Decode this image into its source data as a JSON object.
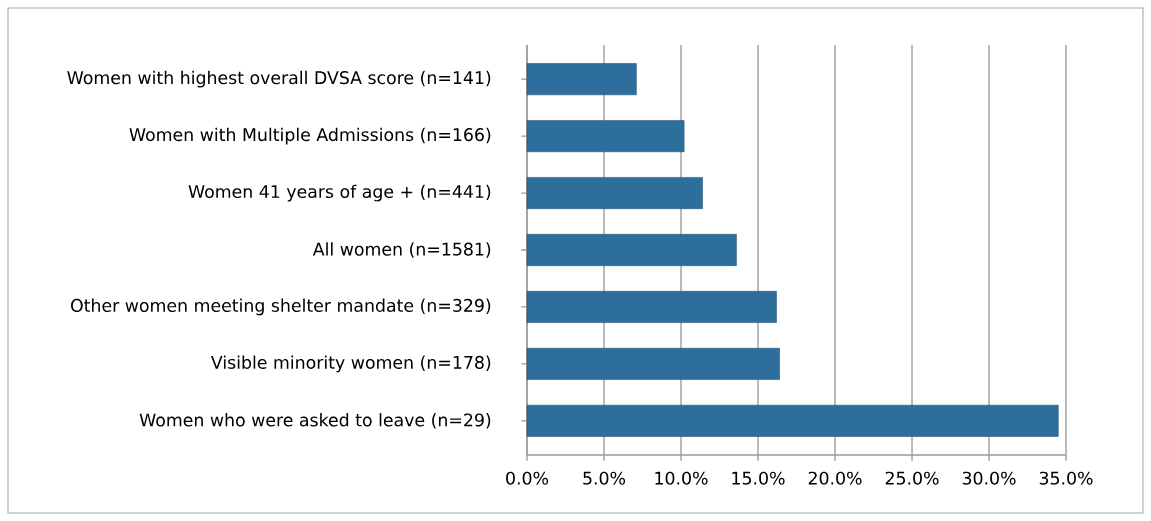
{
  "chart_data": {
    "type": "bar",
    "orientation": "horizontal",
    "categories": [
      "Women with highest overall DVSA score (n=141)",
      "Women with Multiple Admissions (n=166)",
      "Women 41 years of age + (n=441)",
      "All women (n=1581)",
      "Other women meeting shelter mandate (n=329)",
      "Visible minority women (n=178)",
      "Women who were asked to leave (n=29)"
    ],
    "values": [
      7.1,
      10.2,
      11.4,
      13.6,
      16.2,
      16.4,
      34.5
    ],
    "color": "#2e6e9c",
    "xlim": [
      0,
      35
    ],
    "xticks": [
      {
        "value": 0,
        "label": "0.0%"
      },
      {
        "value": 5,
        "label": "5.0%"
      },
      {
        "value": 10,
        "label": "10.0%"
      },
      {
        "value": 15,
        "label": "15.0%"
      },
      {
        "value": 20,
        "label": "20.0%"
      },
      {
        "value": 25,
        "label": "25.0%"
      },
      {
        "value": 30,
        "label": "30.0%"
      },
      {
        "value": 35,
        "label": "35.0%"
      }
    ],
    "grid": "x"
  }
}
